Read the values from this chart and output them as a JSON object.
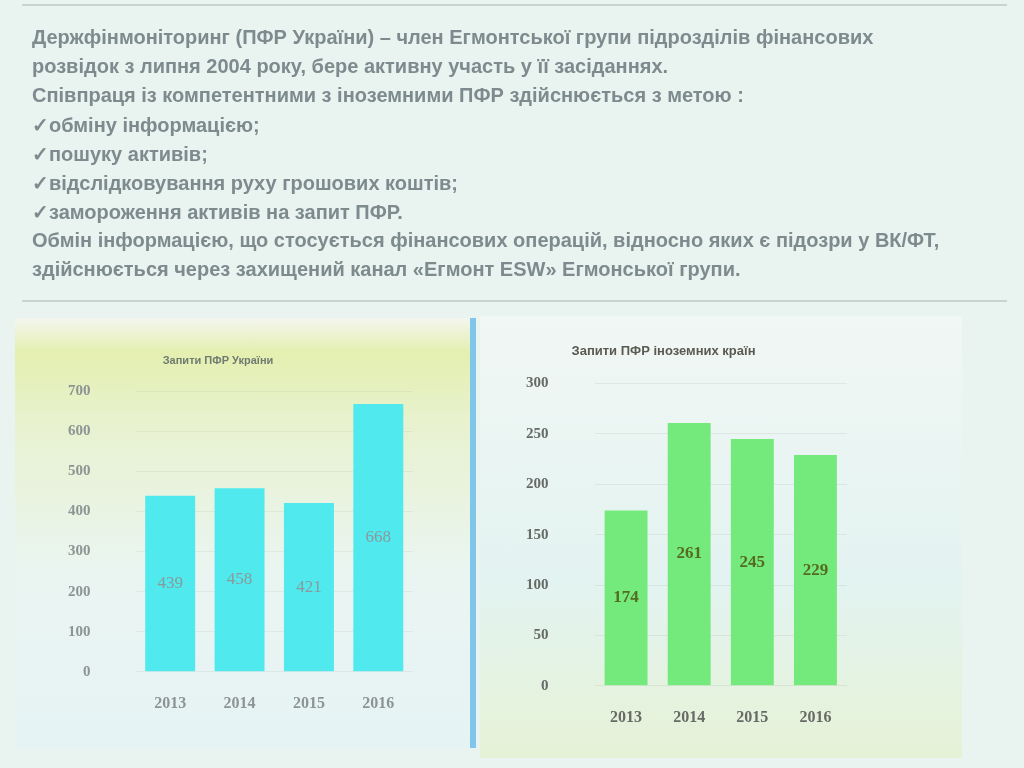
{
  "chart_data": [
    {
      "type": "other",
      "annotations": [
        "Держфінмоніторинг (ПФР України) – член Егмонтської групи підрозділів фінансових",
        "розвідок з липня 2004 року, бере активну участь у її засіданнях.",
        "Співпраця із компетентними з іноземними ПФР здійснюється з метою :",
        "✓обміну інформацією;",
        "✓пошуку активів;",
        "✓відслідковування руху грошових коштів;",
        "✓замороження активів на запит ПФР.",
        "Обмін інформацією, що стосується фінансових операцій, відносно яких є підозри у ВК/ФТ,",
        "здійснюється через захищений канал «Егмонт ESW» Егмонської групи."
      ]
    },
    {
      "type": "bar",
      "title": "Запити ПФР України",
      "categories": [
        "2013",
        "2014",
        "2015",
        "2016"
      ],
      "values": [
        439,
        458,
        421,
        668
      ],
      "color": "#4fe9ee",
      "ylim": [
        0,
        700
      ],
      "yticks": [
        0,
        100,
        200,
        300,
        400,
        500,
        600,
        700
      ],
      "grid": "y",
      "data_labels": true
    },
    {
      "type": "bar",
      "title": "Запити ПФР іноземних країн",
      "categories": [
        "2013",
        "2014",
        "2015",
        "2016"
      ],
      "values": [
        174,
        261,
        245,
        229
      ],
      "color": "#74ea7c",
      "ylim": [
        0,
        300
      ],
      "yticks": [
        0,
        50,
        100,
        150,
        200,
        250,
        300
      ],
      "grid": "y",
      "data_labels": true
    }
  ]
}
